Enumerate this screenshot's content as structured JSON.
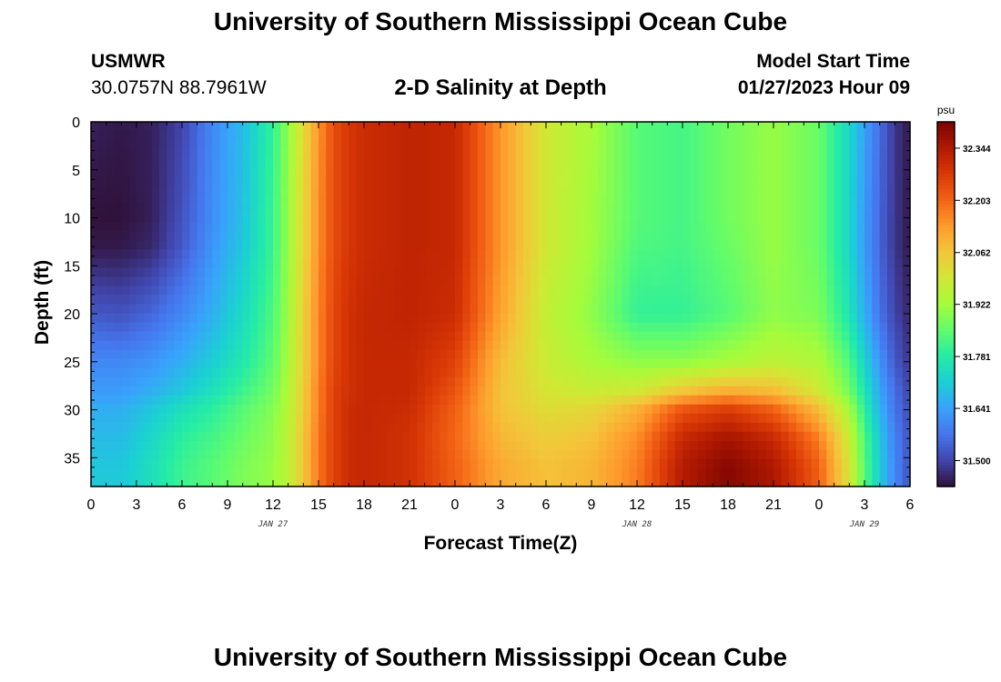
{
  "header": {
    "title": "University of Southern Mississippi Ocean Cube",
    "station_name": "USMWR",
    "station_coords": "30.0757N  88.7961W",
    "subtitle": "2-D Salinity at Depth",
    "model_start_label": "Model Start Time",
    "model_start_value": "01/27/2023 Hour 09"
  },
  "footer": {
    "title": "University of Southern Mississippi Ocean Cube"
  },
  "chart_data": {
    "type": "heatmap",
    "title": "2-D Salinity at Depth",
    "xlabel": "Forecast Time(Z)",
    "ylabel": "Depth (ft)",
    "x_tick_labels": [
      "0",
      "3",
      "6",
      "9",
      "12",
      "15",
      "18",
      "21",
      "0",
      "3",
      "6",
      "9",
      "12",
      "15",
      "18",
      "21",
      "0",
      "3",
      "6"
    ],
    "date_labels": [
      {
        "label": "JAN 27",
        "at_tick": 4
      },
      {
        "label": "JAN 28",
        "at_tick": 12
      },
      {
        "label": "JAN 29",
        "at_tick": 17
      }
    ],
    "xlim_hours": [
      0,
      54
    ],
    "y_ticks": [
      0,
      5,
      10,
      15,
      20,
      25,
      30,
      35
    ],
    "ylim": [
      38,
      0
    ],
    "colorbar": {
      "unit": "psu",
      "ticks": [
        31.5,
        31.641,
        31.781,
        31.922,
        32.062,
        32.203,
        32.344
      ],
      "tick_labels": [
        "31.500",
        "31.641",
        "31.781",
        "31.922",
        "32.062",
        "32.203",
        "32.344"
      ],
      "range": [
        31.43,
        32.415
      ],
      "colors": [
        "#30123b",
        "#4145ab",
        "#4675ed",
        "#39a2fc",
        "#1bcfd4",
        "#24eca6",
        "#61fc6c",
        "#a4fc3b",
        "#d1e834",
        "#f3c63a",
        "#fe9b2d",
        "#f36315",
        "#d93806",
        "#b11901",
        "#7a0402"
      ]
    },
    "salinity_field_psu": {
      "time_hours": [
        0,
        2,
        4,
        6,
        8,
        10,
        12,
        13,
        14,
        15,
        16,
        17,
        18,
        21,
        24,
        27,
        30,
        33,
        36,
        39,
        42,
        45,
        48,
        50,
        51,
        52,
        53,
        54
      ],
      "depth_ft": [
        0,
        10,
        13,
        20,
        25,
        28,
        30,
        33,
        36,
        38
      ],
      "values": [
        [
          31.45,
          31.44,
          31.45,
          31.5,
          31.6,
          31.68,
          31.8,
          31.9,
          32.02,
          32.14,
          32.24,
          32.28,
          32.3,
          32.32,
          32.31,
          32.14,
          31.99,
          31.93,
          31.84,
          31.82,
          31.87,
          31.91,
          31.86,
          31.73,
          31.64,
          31.56,
          31.48,
          31.44
        ],
        [
          31.43,
          31.43,
          31.45,
          31.52,
          31.61,
          31.69,
          31.81,
          31.91,
          32.03,
          32.15,
          32.24,
          32.28,
          32.3,
          32.32,
          32.31,
          32.14,
          31.99,
          31.92,
          31.84,
          31.82,
          31.87,
          31.91,
          31.86,
          31.73,
          31.63,
          31.55,
          31.48,
          31.44
        ],
        [
          31.44,
          31.44,
          31.46,
          31.53,
          31.62,
          31.7,
          31.81,
          31.91,
          32.03,
          32.15,
          32.24,
          32.28,
          32.3,
          32.32,
          32.31,
          32.14,
          31.99,
          31.92,
          31.83,
          31.82,
          31.86,
          31.91,
          31.86,
          31.73,
          31.63,
          31.55,
          31.48,
          31.44
        ],
        [
          31.53,
          31.52,
          31.55,
          31.6,
          31.66,
          31.74,
          31.83,
          31.92,
          32.04,
          32.16,
          32.25,
          32.29,
          32.31,
          32.32,
          32.3,
          32.12,
          31.97,
          31.9,
          31.8,
          31.8,
          31.84,
          31.9,
          31.88,
          31.76,
          31.66,
          31.57,
          31.5,
          31.46
        ],
        [
          31.6,
          31.6,
          31.62,
          31.66,
          31.71,
          31.77,
          31.85,
          31.93,
          32.04,
          32.16,
          32.25,
          32.29,
          32.31,
          32.31,
          32.26,
          32.08,
          31.98,
          31.93,
          31.9,
          31.9,
          31.93,
          31.96,
          31.94,
          31.83,
          31.72,
          31.62,
          31.53,
          31.48
        ],
        [
          31.63,
          31.63,
          31.66,
          31.7,
          31.75,
          31.81,
          31.87,
          31.94,
          32.05,
          32.17,
          32.26,
          32.29,
          32.31,
          32.31,
          32.23,
          32.07,
          32.0,
          31.98,
          31.99,
          32.06,
          32.1,
          32.08,
          31.99,
          31.87,
          31.76,
          31.65,
          31.56,
          31.5
        ],
        [
          31.66,
          31.66,
          31.7,
          31.75,
          31.79,
          31.84,
          31.89,
          31.95,
          32.05,
          32.17,
          32.26,
          32.3,
          32.31,
          32.3,
          32.21,
          32.07,
          32.02,
          32.03,
          32.1,
          32.23,
          32.27,
          32.21,
          32.08,
          31.93,
          31.79,
          31.67,
          31.57,
          31.51
        ],
        [
          31.68,
          31.68,
          31.73,
          31.79,
          31.82,
          31.86,
          31.9,
          31.96,
          32.06,
          32.18,
          32.26,
          32.3,
          32.31,
          32.29,
          32.2,
          32.09,
          32.05,
          32.07,
          32.15,
          32.31,
          32.36,
          32.31,
          32.17,
          31.98,
          31.83,
          31.7,
          31.59,
          31.52
        ],
        [
          31.7,
          31.7,
          31.75,
          31.81,
          31.84,
          31.88,
          31.91,
          31.96,
          32.06,
          32.18,
          32.26,
          32.3,
          32.31,
          32.29,
          32.21,
          32.11,
          32.07,
          32.09,
          32.17,
          32.34,
          32.4,
          32.35,
          32.21,
          32.0,
          31.84,
          31.71,
          31.6,
          31.52
        ],
        [
          31.7,
          31.7,
          31.75,
          31.81,
          31.84,
          31.88,
          31.91,
          31.96,
          32.06,
          32.18,
          32.26,
          32.3,
          32.31,
          32.29,
          32.21,
          32.11,
          32.07,
          32.09,
          32.17,
          32.34,
          32.4,
          32.35,
          32.21,
          32.0,
          31.84,
          31.71,
          31.6,
          31.52
        ]
      ]
    }
  }
}
